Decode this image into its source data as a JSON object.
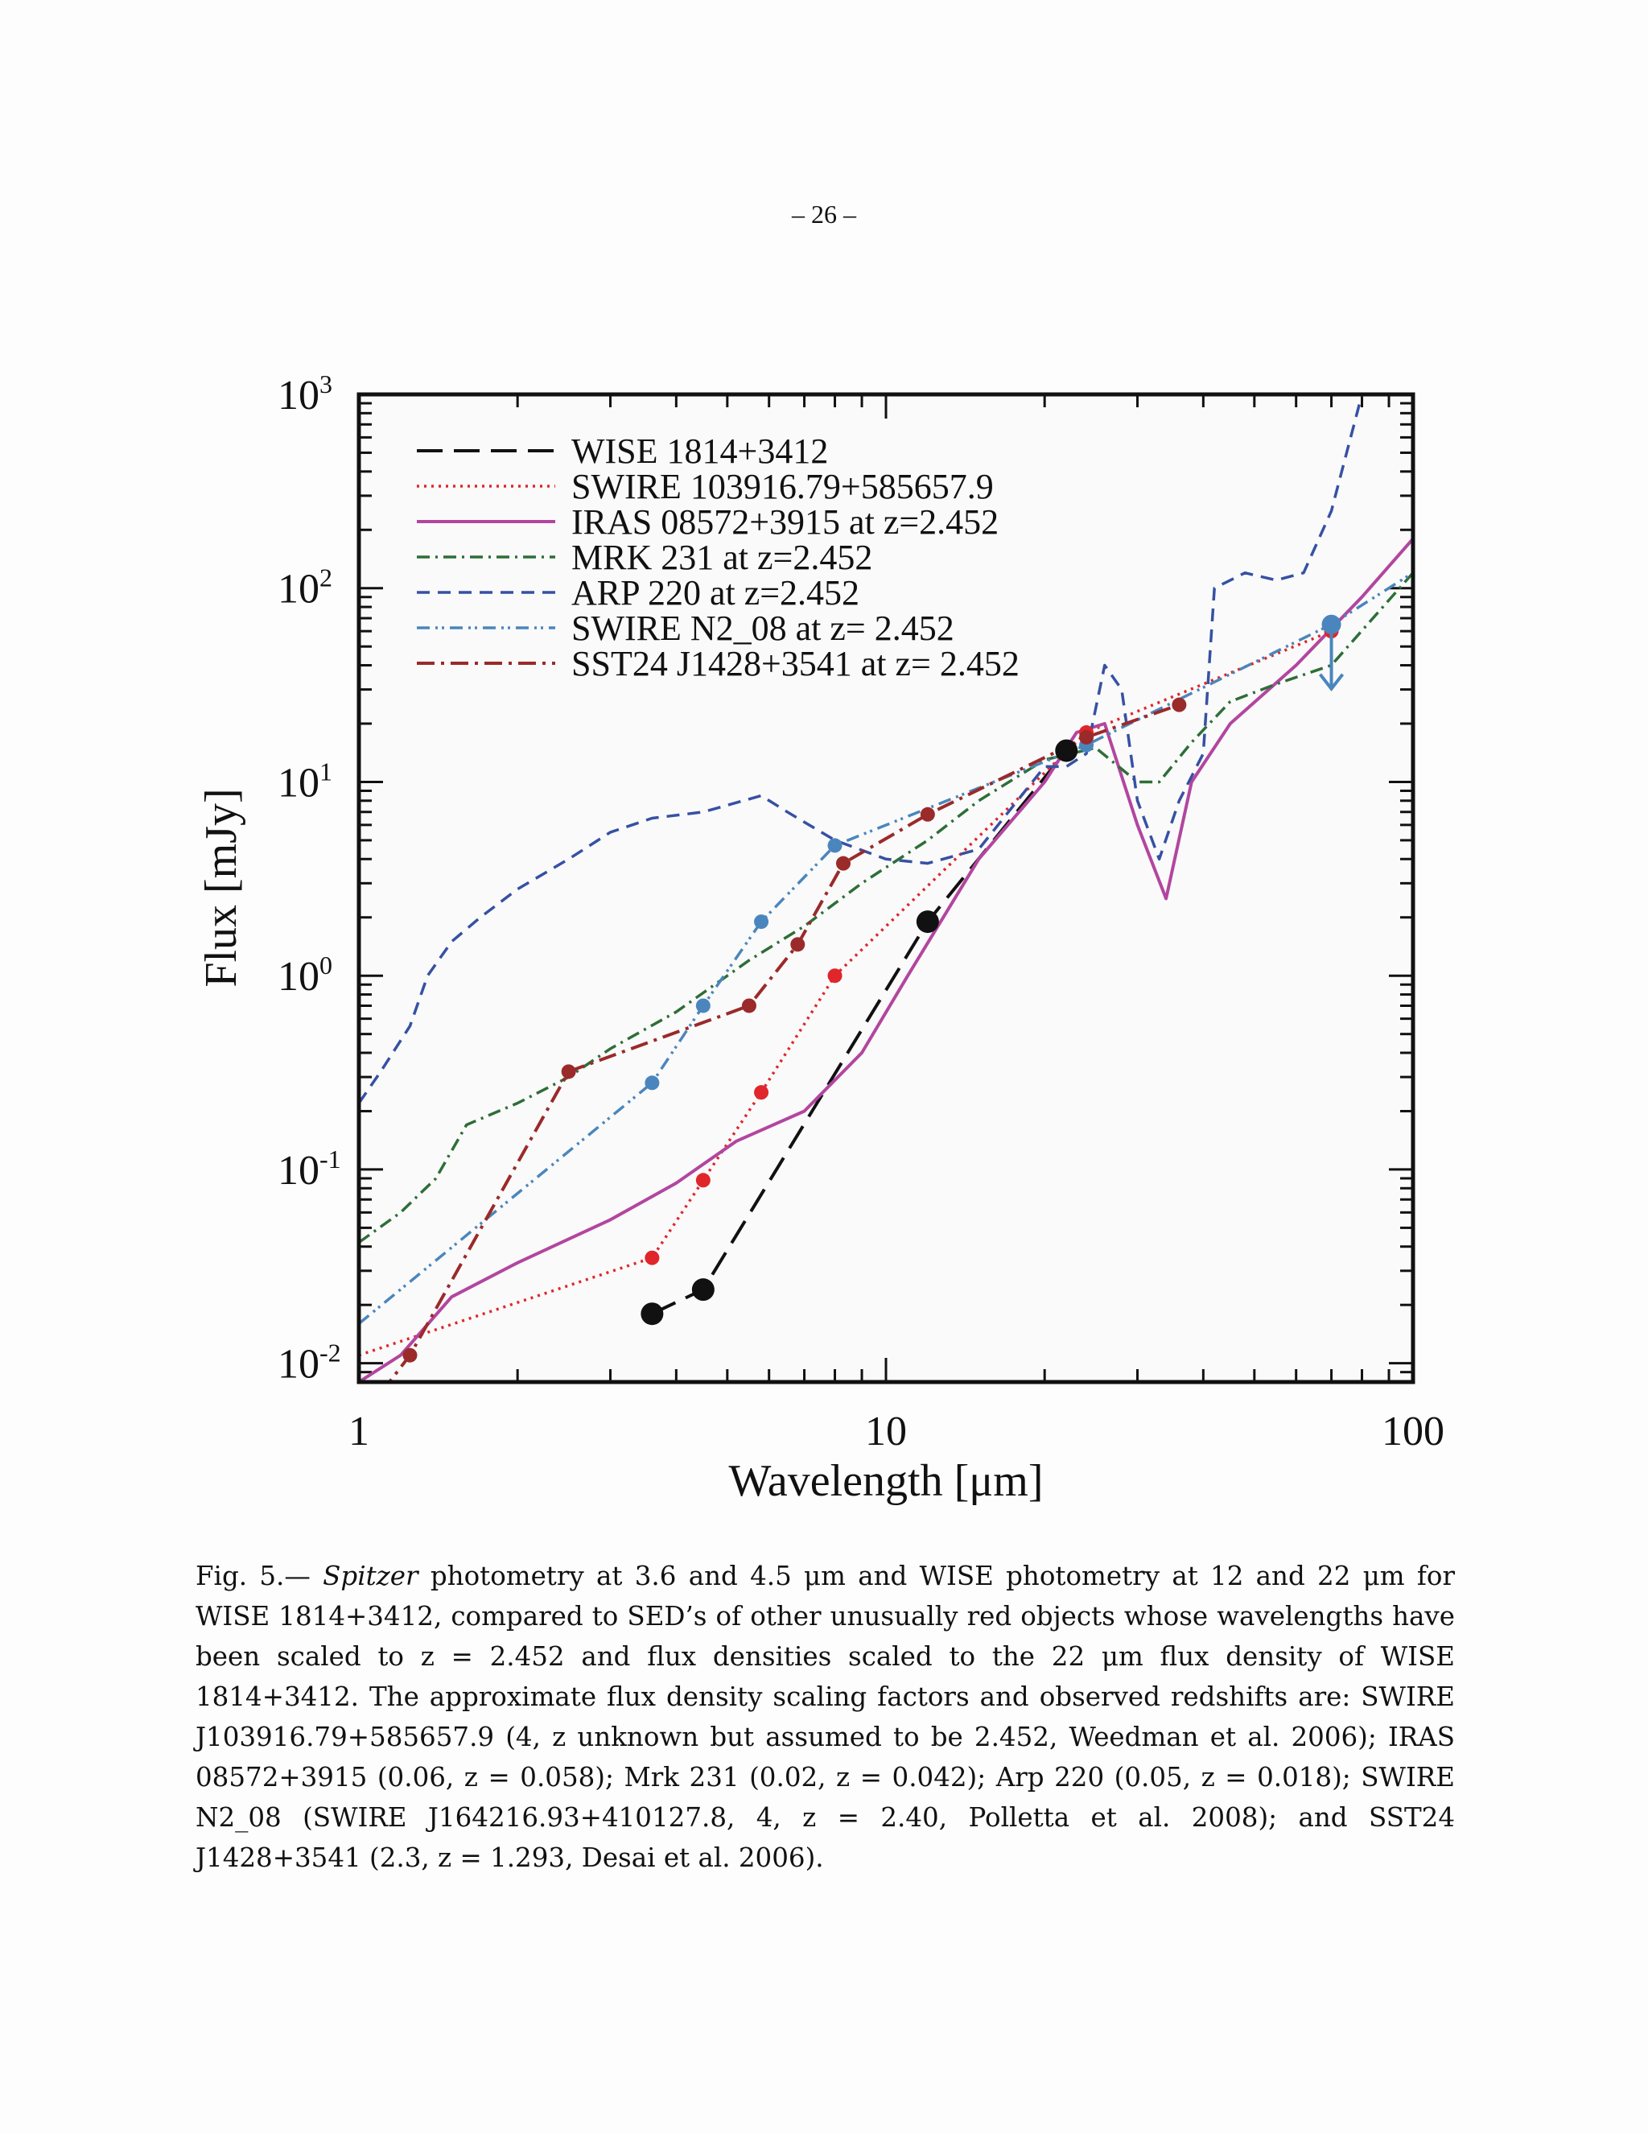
{
  "page": {
    "number": "– 26 –"
  },
  "caption": {
    "lead": "Fig. 5.— ",
    "italic": "Spitzer",
    "body": " photometry at 3.6 and 4.5 μm and WISE photometry at 12 and 22 μm for WISE 1814+3412, compared to SED’s of other unusually red objects whose wavelengths have been scaled to z = 2.452 and flux densities scaled to the 22 μm flux density of WISE 1814+3412. The approximate flux density scaling factors and observed redshifts are: SWIRE J103916.79+585657.9 (4, z unknown but assumed to be 2.452, Weedman et al. 2006); IRAS 08572+3915 (0.06, z = 0.058); Mrk 231 (0.02, z = 0.042); Arp 220 (0.05, z = 0.018); SWIRE N2_08 (SWIRE J164216.93+410127.8, 4, z = 2.40, Polletta et al. 2008); and SST24 J1428+3541 (2.3, z = 1.293, Desai et al. 2006)."
  },
  "chart_data": {
    "type": "line",
    "title": "",
    "xlabel": "Wavelength [μm]",
    "ylabel": "Flux [mJy]",
    "xscale": "log",
    "yscale": "log",
    "xlim": [
      1,
      100
    ],
    "ylim": [
      0.008,
      1000
    ],
    "x_tick_labels": [
      "1",
      "10",
      "100"
    ],
    "y_tick_labels": [
      {
        "base": "10",
        "exp": "-2"
      },
      {
        "base": "10",
        "exp": "-1"
      },
      {
        "base": "10",
        "exp": "0"
      },
      {
        "base": "10",
        "exp": "1"
      },
      {
        "base": "10",
        "exp": "2"
      },
      {
        "base": "10",
        "exp": "3"
      }
    ],
    "legend_position": "top-left",
    "series": [
      {
        "name": "WISE 1814+3412",
        "color": "#111111",
        "dash": "32,14",
        "width": 4,
        "marker_r": 14,
        "x": [
          3.6,
          4.5,
          12,
          22
        ],
        "y": [
          0.018,
          0.024,
          1.9,
          14.5
        ],
        "markers": [
          true,
          true,
          true,
          true
        ]
      },
      {
        "name": "SWIRE 103916.79+585657.9",
        "color": "#e0262b",
        "dash": "3,6",
        "width": 3.5,
        "marker_r": 9,
        "x": [
          1,
          3.6,
          4.5,
          5.8,
          8,
          24,
          70
        ],
        "y": [
          0.011,
          0.035,
          0.088,
          0.25,
          1.0,
          18,
          60
        ],
        "markers": [
          false,
          true,
          true,
          true,
          true,
          true,
          true
        ]
      },
      {
        "name": "IRAS 08572+3915 at z=2.452",
        "color": "#b2469f",
        "dash": "",
        "width": 4,
        "marker_r": 0,
        "x": [
          1,
          1.2,
          1.5,
          2,
          3,
          4,
          5.2,
          7,
          9,
          11,
          15,
          20,
          23,
          26,
          30,
          34,
          38,
          45,
          60,
          80,
          100
        ],
        "y": [
          0.008,
          0.011,
          0.022,
          0.033,
          0.055,
          0.085,
          0.14,
          0.2,
          0.4,
          1.0,
          4.0,
          10,
          18,
          20,
          6,
          2.5,
          10,
          20,
          40,
          90,
          180
        ],
        "markers": []
      },
      {
        "name": "MRK 231 at z=2.452",
        "color": "#2e6e37",
        "dash": "16,7,3,7",
        "width": 3.5,
        "marker_r": 0,
        "x": [
          1,
          1.2,
          1.4,
          1.6,
          2,
          2.5,
          3,
          4,
          5.5,
          7,
          9,
          12,
          15,
          20,
          25,
          30,
          33,
          38,
          45,
          55,
          70,
          100
        ],
        "y": [
          0.042,
          0.06,
          0.09,
          0.17,
          0.22,
          0.3,
          0.42,
          0.65,
          1.2,
          1.8,
          3.0,
          5.0,
          8.0,
          13,
          15,
          10,
          10,
          16,
          26,
          32,
          40,
          120
        ],
        "markers": []
      },
      {
        "name": "ARP 220 at z=2.452",
        "color": "#3651a3",
        "dash": "16,10",
        "width": 3.5,
        "marker_r": 0,
        "x": [
          1,
          1.1,
          1.25,
          1.35,
          1.5,
          1.7,
          2,
          2.5,
          3,
          3.6,
          4.5,
          5.8,
          6.5,
          8,
          10,
          12,
          15,
          20,
          22,
          24,
          26,
          28,
          30,
          33,
          36,
          40,
          42,
          48,
          55,
          62,
          70,
          80,
          100
        ],
        "y": [
          0.22,
          0.32,
          0.55,
          1.0,
          1.5,
          2.0,
          2.8,
          4.0,
          5.5,
          6.5,
          7.0,
          8.5,
          7.0,
          5.0,
          4.0,
          3.8,
          4.5,
          12,
          12,
          14,
          40,
          30,
          8.0,
          4.0,
          8.0,
          14,
          100,
          120,
          110,
          120,
          250,
          1000,
          1000
        ],
        "markers": []
      },
      {
        "name": "SWIRE N2_08 at z= 2.452",
        "color": "#4a86bd",
        "dash": "16,7,3,5,3,7",
        "width": 3.5,
        "marker_r": 9,
        "x": [
          1,
          3.6,
          4.5,
          5.8,
          8,
          24,
          70,
          100
        ],
        "y": [
          0.016,
          0.28,
          0.7,
          1.9,
          4.7,
          15.5,
          65,
          120
        ],
        "markers": [
          false,
          true,
          true,
          true,
          true,
          true,
          true,
          false
        ]
      },
      {
        "name": "SST24 J1428+3541 at z= 2.452",
        "color": "#9b2a2a",
        "dash": "22,8,4,8",
        "width": 4,
        "marker_r": 9,
        "x": [
          1.1,
          1.25,
          2.5,
          5.5,
          6.8,
          8.3,
          12,
          24,
          36
        ],
        "y": [
          0.007,
          0.011,
          0.32,
          0.7,
          1.45,
          3.8,
          6.8,
          17,
          25
        ],
        "markers": [
          false,
          true,
          true,
          true,
          true,
          true,
          true,
          true,
          true
        ]
      }
    ],
    "upper_limit": {
      "x": 70,
      "y": 65,
      "color": "#4a86bd"
    }
  }
}
